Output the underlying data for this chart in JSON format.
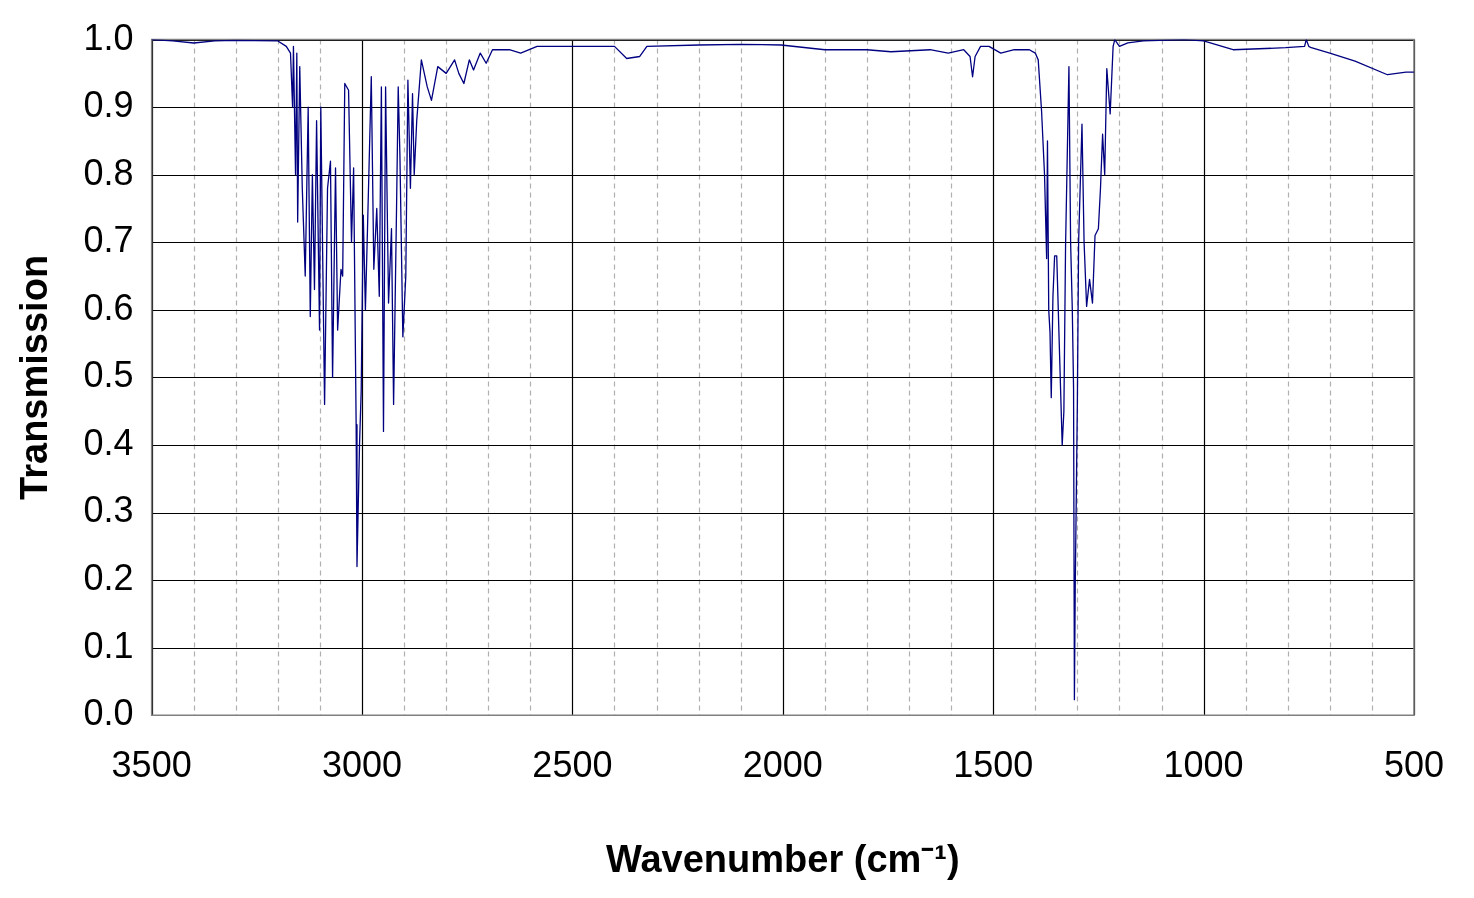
{
  "chart_data": {
    "type": "line",
    "xlabel": "Wavenumber (cm⁻¹)",
    "ylabel": "Transmission",
    "xlim": [
      3500,
      500
    ],
    "ylim": [
      0,
      1
    ],
    "xticks": [
      3500,
      {
        "value": 3400,
        "label": null
      },
      {
        "value": 3300,
        "label": null
      },
      {
        "value": 3200,
        "label": null
      },
      {
        "value": 3100,
        "label": null
      },
      3000,
      {
        "value": 2900,
        "label": null
      },
      {
        "value": 2800,
        "label": null
      },
      {
        "value": 2700,
        "label": null
      },
      {
        "value": 2600,
        "label": null
      },
      2500,
      {
        "value": 2400,
        "label": null
      },
      {
        "value": 2300,
        "label": null
      },
      {
        "value": 2200,
        "label": null
      },
      {
        "value": 2100,
        "label": null
      },
      2000,
      {
        "value": 1900,
        "label": null
      },
      {
        "value": 1800,
        "label": null
      },
      {
        "value": 1700,
        "label": null
      },
      {
        "value": 1600,
        "label": null
      },
      1500,
      {
        "value": 1400,
        "label": null
      },
      {
        "value": 1300,
        "label": null
      },
      {
        "value": 1200,
        "label": null
      },
      {
        "value": 1100,
        "label": null
      },
      1000,
      {
        "value": 900,
        "label": null
      },
      {
        "value": 800,
        "label": null
      },
      {
        "value": 700,
        "label": null
      },
      {
        "value": 600,
        "label": null
      },
      500
    ],
    "yticks": [
      {
        "value": 0,
        "label": "0.0"
      },
      {
        "value": 0.1,
        "label": "0.1"
      },
      {
        "value": 0.2,
        "label": "0.2"
      },
      {
        "value": 0.3,
        "label": "0.3"
      },
      {
        "value": 0.4,
        "label": "0.4"
      },
      {
        "value": 0.5,
        "label": "0.5"
      },
      {
        "value": 0.6,
        "label": "0.6"
      },
      {
        "value": 0.7,
        "label": "0.7"
      },
      {
        "value": 0.8,
        "label": "0.8"
      },
      {
        "value": 0.9,
        "label": "0.9"
      },
      {
        "value": 1,
        "label": "1.0"
      }
    ],
    "grid": true,
    "legend": false,
    "marker": "none",
    "line_style": "solid",
    "series": [
      {
        "color": "#000080",
        "x": [
          3500,
          3450,
          3400,
          3350,
          3300,
          3200,
          3180,
          3170,
          3165,
          3163,
          3158,
          3155,
          3153,
          3148,
          3142,
          3135,
          3128,
          3123,
          3118,
          3113,
          3108,
          3101,
          3098,
          3089,
          3082,
          3075,
          3070,
          3063,
          3058,
          3050,
          3046,
          3041,
          3032,
          3025,
          3020,
          3014,
          3012,
          3006,
          3002,
          2997,
          2992,
          2987,
          2978,
          2972,
          2965,
          2959,
          2954,
          2949,
          2944,
          2937,
          2930,
          2925,
          2918,
          2914,
          2910,
          2903,
          2896,
          2891,
          2885,
          2880,
          2876,
          2870,
          2859,
          2845,
          2835,
          2820,
          2800,
          2780,
          2770,
          2758,
          2745,
          2735,
          2719,
          2705,
          2690,
          2650,
          2623,
          2584,
          2500,
          2400,
          2371,
          2340,
          2323,
          2200,
          2100,
          2004,
          1900,
          1800,
          1743,
          1650,
          1607,
          1570,
          1555,
          1549,
          1543,
          1530,
          1510,
          1482,
          1450,
          1414,
          1400,
          1393,
          1385,
          1378,
          1373,
          1371,
          1368,
          1365,
          1362,
          1358,
          1354,
          1349,
          1343,
          1336,
          1332,
          1328,
          1320,
          1316,
          1312,
          1309,
          1307,
          1305,
          1300,
          1297,
          1289,
          1284,
          1278,
          1271,
          1264,
          1258,
          1250,
          1245,
          1240,
          1235,
          1230,
          1222,
          1215,
          1211,
          1200,
          1180,
          1143,
          1046,
          1000,
          930,
          805,
          760,
          756,
          750,
          744,
          700,
          640,
          563,
          519,
          500
        ],
        "values": [
          1.0,
          0.998,
          0.995,
          0.998,
          0.999,
          0.998,
          0.99,
          0.98,
          0.9,
          0.99,
          0.8,
          0.98,
          0.73,
          0.96,
          0.78,
          0.65,
          0.9,
          0.59,
          0.8,
          0.63,
          0.88,
          0.57,
          0.9,
          0.46,
          0.78,
          0.82,
          0.5,
          0.81,
          0.57,
          0.66,
          0.65,
          0.935,
          0.925,
          0.7,
          0.81,
          0.43,
          0.22,
          0.4,
          0.48,
          0.74,
          0.6,
          0.72,
          0.945,
          0.66,
          0.75,
          0.62,
          0.93,
          0.42,
          0.93,
          0.61,
          0.72,
          0.46,
          0.75,
          0.93,
          0.83,
          0.56,
          0.65,
          0.94,
          0.78,
          0.92,
          0.8,
          0.88,
          0.97,
          0.93,
          0.91,
          0.96,
          0.95,
          0.97,
          0.95,
          0.935,
          0.97,
          0.955,
          0.98,
          0.965,
          0.985,
          0.985,
          0.98,
          0.99,
          0.99,
          0.99,
          0.972,
          0.975,
          0.99,
          0.992,
          0.993,
          0.992,
          0.985,
          0.985,
          0.982,
          0.985,
          0.98,
          0.985,
          0.975,
          0.945,
          0.975,
          0.99,
          0.99,
          0.98,
          0.985,
          0.985,
          0.98,
          0.97,
          0.894,
          0.8,
          0.676,
          0.85,
          0.6,
          0.567,
          0.47,
          0.62,
          0.68,
          0.68,
          0.55,
          0.4,
          0.45,
          0.695,
          0.96,
          0.7,
          0.6,
          0.484,
          0.023,
          0.19,
          0.46,
          0.7,
          0.875,
          0.7,
          0.605,
          0.645,
          0.61,
          0.71,
          0.72,
          0.78,
          0.86,
          0.8,
          0.957,
          0.89,
          0.99,
          1.0,
          0.99,
          0.995,
          0.998,
          1.0,
          0.998,
          0.985,
          0.988,
          0.99,
          1.0,
          0.99,
          0.988,
          0.98,
          0.968,
          0.948,
          0.952,
          0.952
        ]
      }
    ]
  }
}
